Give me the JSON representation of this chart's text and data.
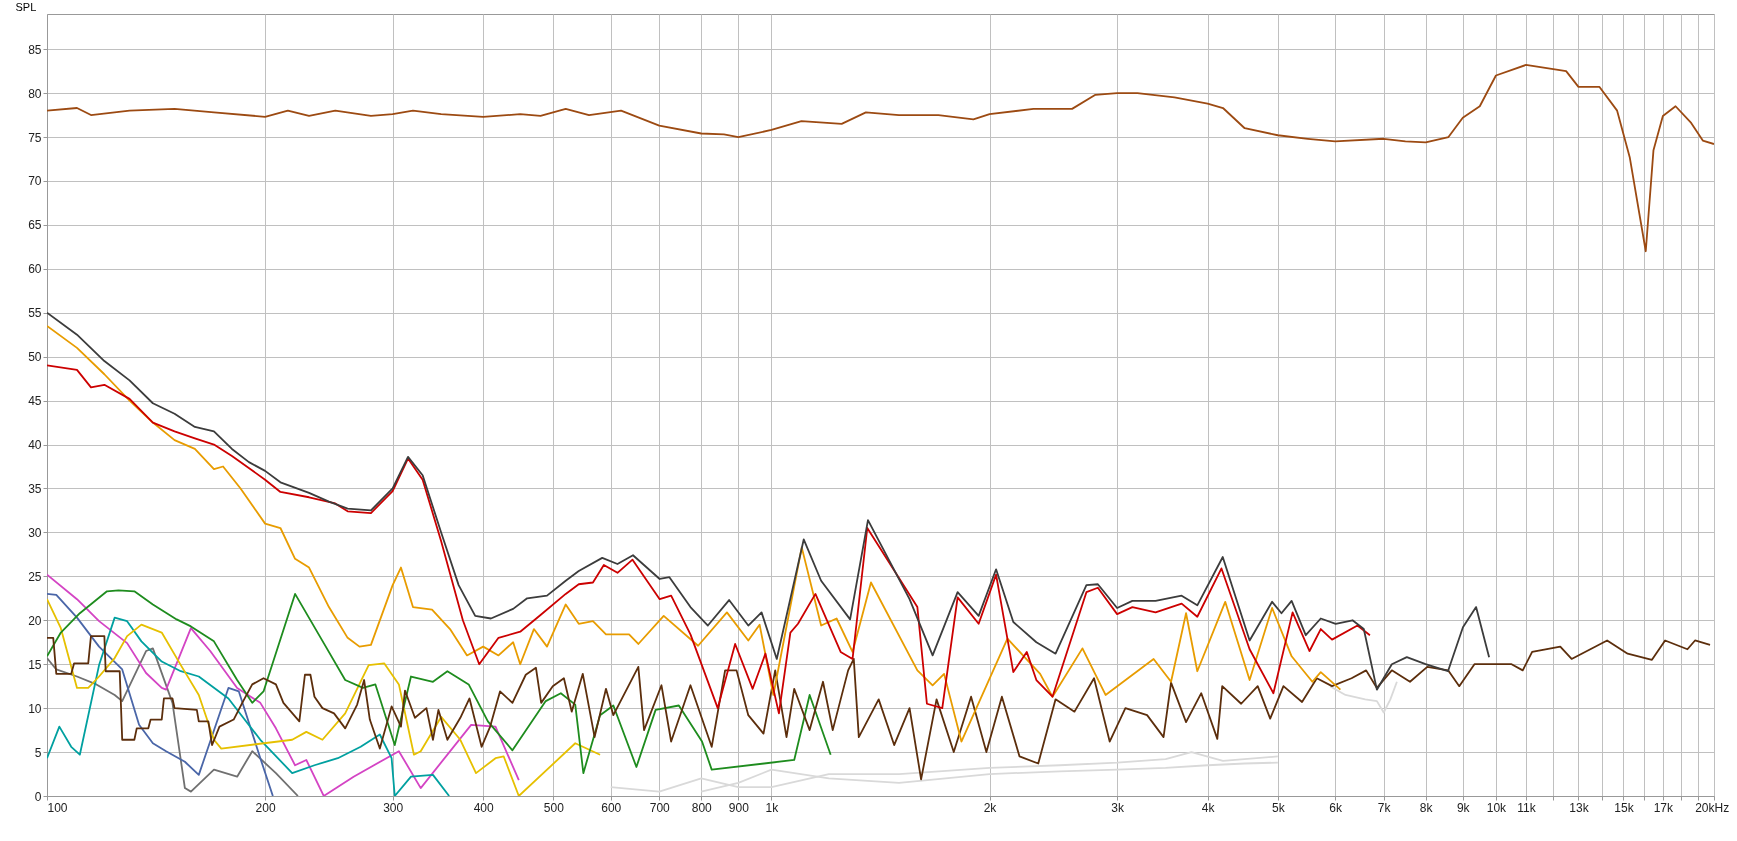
{
  "chart_data": {
    "type": "line",
    "ylabel": "SPL",
    "xlim": [
      100,
      20000
    ],
    "ylim": [
      0,
      89
    ],
    "log": "x",
    "grid": true,
    "xticks": [
      {
        "value": 100,
        "label": "100"
      },
      {
        "value": 200,
        "label": "200"
      },
      {
        "value": 300,
        "label": "300"
      },
      {
        "value": 400,
        "label": "400"
      },
      {
        "value": 500,
        "label": "500"
      },
      {
        "value": 600,
        "label": "600"
      },
      {
        "value": 700,
        "label": "700"
      },
      {
        "value": 800,
        "label": "800"
      },
      {
        "value": 900,
        "label": "900"
      },
      {
        "value": 1000,
        "label": "1k"
      },
      {
        "value": 2000,
        "label": "2k"
      },
      {
        "value": 3000,
        "label": "3k"
      },
      {
        "value": 4000,
        "label": "4k"
      },
      {
        "value": 5000,
        "label": "5k"
      },
      {
        "value": 6000,
        "label": "6k"
      },
      {
        "value": 7000,
        "label": "7k"
      },
      {
        "value": 8000,
        "label": "8k"
      },
      {
        "value": 9000,
        "label": "9k"
      },
      {
        "value": 10000,
        "label": "10k"
      },
      {
        "value": 11000,
        "label": "11k"
      },
      {
        "value": 12000,
        "label": null
      },
      {
        "value": 13000,
        "label": "13k"
      },
      {
        "value": 14000,
        "label": null
      },
      {
        "value": 15000,
        "label": "15k"
      },
      {
        "value": 16000,
        "label": null
      },
      {
        "value": 17000,
        "label": "17k"
      },
      {
        "value": 18000,
        "label": null
      },
      {
        "value": 19000,
        "label": null
      },
      {
        "value": 20000,
        "label": "20k"
      }
    ],
    "xlabel": "Hz",
    "yticks": [
      0,
      5,
      10,
      15,
      20,
      25,
      30,
      35,
      40,
      45,
      50,
      55,
      60,
      65,
      70,
      75,
      80,
      85
    ],
    "series": [
      {
        "color": "#d9d9d9",
        "x": [
          600,
          700,
          800,
          900,
          1000,
          1200,
          1500,
          2000,
          2500,
          3000,
          3500,
          3800,
          4200,
          5000
        ],
        "values": [
          1,
          0.5,
          2,
          1,
          1,
          2.5,
          2.5,
          3.2,
          3.5,
          3.8,
          4.2,
          5,
          4,
          4.5
        ]
      },
      {
        "color": "#d9d9d9",
        "x": [
          800,
          900,
          1000,
          1200,
          1500,
          2000,
          2500,
          3000,
          3500,
          4000,
          4500,
          5000
        ],
        "values": [
          0.5,
          1.5,
          3,
          2,
          1.5,
          2.5,
          2.8,
          3,
          3.2,
          3.5,
          3.7,
          3.8
        ]
      },
      {
        "color": "#d9d9d9",
        "x": [
          5900,
          6200,
          6600,
          6850,
          7000,
          7150,
          7300
        ],
        "values": [
          12.5,
          11.5,
          11,
          10.8,
          9.5,
          11,
          13
        ]
      },
      {
        "color": "#707070",
        "x": [
          100,
          103,
          110,
          117,
          124,
          127,
          137,
          140,
          149,
          155,
          158,
          170,
          183,
          192,
          207,
          222
        ],
        "values": [
          15.7,
          14.4,
          13.6,
          12.7,
          11.5,
          10.8,
          16.5,
          16.8,
          10.6,
          0.9,
          0.5,
          3,
          2.2,
          5.1,
          2.6,
          0
        ]
      },
      {
        "color": "#4a66a8",
        "x": [
          100,
          103,
          110,
          118,
          127,
          134,
          140,
          146,
          155,
          162,
          178,
          184,
          197,
          205
        ],
        "values": [
          23,
          22.9,
          20.3,
          17,
          14.4,
          8.1,
          6,
          5.1,
          3.9,
          2.4,
          12.3,
          11.9,
          4.3,
          0
        ]
      },
      {
        "color": "#d444c4",
        "x": [
          100,
          110,
          118,
          129,
          137,
          144,
          146,
          158,
          168,
          183,
          197,
          207,
          220,
          228,
          241,
          265,
          306,
          328,
          385,
          416,
          448
        ],
        "values": [
          25.2,
          22.4,
          19.9,
          17.4,
          14,
          12.3,
          12.1,
          19.1,
          16.5,
          12.3,
          10.6,
          7.7,
          3.5,
          4.1,
          0,
          2.2,
          5.1,
          0.9,
          8.1,
          7.9,
          1.8
        ]
      },
      {
        "color": "#00a0a0",
        "x": [
          100,
          104,
          108,
          111,
          118,
          124,
          129,
          135,
          144,
          153,
          162,
          178,
          197,
          218,
          234,
          252,
          271,
          288,
          299,
          302,
          318,
          341,
          359
        ],
        "values": [
          4.3,
          7.9,
          5.6,
          4.7,
          14.9,
          20.3,
          19.9,
          17.6,
          15.3,
          14.2,
          13.6,
          11.1,
          6.4,
          2.6,
          3.5,
          4.3,
          5.6,
          7,
          4.3,
          0,
          2.2,
          2.4,
          0
        ]
      },
      {
        "color": "#e6c000",
        "x": [
          100,
          104.5,
          110,
          114,
          118,
          124,
          129,
          135,
          144,
          153,
          162,
          170,
          174,
          218,
          228,
          240,
          258,
          278,
          292,
          306,
          321,
          328,
          350,
          372,
          391,
          416,
          427,
          448,
          536,
          580
        ],
        "values": [
          22.4,
          19.1,
          12.3,
          12.3,
          13.6,
          15.7,
          18.2,
          19.5,
          18.6,
          14.9,
          11.5,
          6.4,
          5.4,
          6.4,
          7.3,
          6.4,
          9.4,
          14.9,
          15.1,
          12.7,
          4.7,
          5.1,
          9,
          6.4,
          2.6,
          4.3,
          4.5,
          0,
          6,
          4.7
        ]
      },
      {
        "color": "#1e8c1e",
        "x": [
          100,
          104.5,
          111,
          121,
          125.5,
          132,
          140,
          151,
          158,
          170,
          183,
          192,
          199,
          220,
          241,
          258,
          273,
          284,
          302,
          318,
          341,
          357,
          382,
          406,
          439,
          488,
          512,
          536,
          550,
          580,
          605,
          651,
          692,
          745,
          802,
          827,
          1075,
          1129,
          1207
        ],
        "values": [
          15.9,
          18.6,
          20.8,
          23.3,
          23.4,
          23.3,
          21.8,
          20.1,
          19.3,
          17.6,
          13.2,
          10.6,
          11.9,
          23,
          17.4,
          13.2,
          12.3,
          12.7,
          5.8,
          13.6,
          13,
          14.2,
          12.7,
          8.5,
          5.2,
          10.8,
          11.7,
          10.4,
          2.6,
          9.2,
          10.3,
          3.3,
          9.8,
          10.3,
          6.2,
          3,
          4.1,
          11.5,
          4.7
        ]
      },
      {
        "color": "#5c2e0c",
        "x": [
          100,
          102,
          103,
          108,
          109,
          114,
          115,
          120,
          120.5,
          126,
          127,
          132,
          133,
          138,
          139,
          144,
          145,
          149,
          150,
          161,
          162,
          167,
          169,
          173,
          181,
          186,
          192,
          199,
          207,
          212,
          223,
          227,
          231,
          234,
          240,
          249,
          258,
          268,
          274,
          279,
          288,
          299,
          308,
          312,
          322,
          334,
          341,
          347,
          357,
          372,
          383,
          398,
          409,
          422,
          439,
          458,
          473,
          481,
          499,
          517,
          530,
          549,
          570,
          591,
          605,
          655,
          667,
          705,
          727,
          773,
          827,
          863,
          895,
          929,
          975,
          1012,
          1049,
          1075,
          1129,
          1178,
          1215,
          1276,
          1299,
          1320,
          1406,
          1477,
          1551,
          1609,
          1690,
          1785,
          1886,
          1980,
          2080,
          2200,
          2335,
          2467,
          2620,
          2788,
          2930,
          3080,
          3300,
          3477,
          3561,
          3735,
          3920,
          4125,
          4190,
          4450,
          4690,
          4880,
          5090,
          5400,
          5660,
          5940,
          6320,
          6620,
          6850,
          7183,
          7610,
          8040,
          8590,
          8900,
          9340,
          9930,
          10510,
          10890,
          11220,
          12270,
          12720,
          14240,
          15200,
          16420,
          17120,
          18380,
          18830,
          19750
        ],
        "values": [
          18,
          18,
          13.9,
          13.9,
          15.1,
          15.1,
          18.2,
          18.2,
          14.2,
          14.2,
          6.4,
          6.4,
          7.7,
          7.7,
          8.7,
          8.7,
          11.1,
          11.1,
          10,
          9.8,
          8.5,
          8.5,
          5.8,
          7.9,
          8.7,
          10.6,
          12.7,
          13.4,
          12.7,
          10.6,
          8.5,
          13.8,
          13.8,
          11.3,
          10,
          9.4,
          7.7,
          10.4,
          13.2,
          8.7,
          5.4,
          10.2,
          7.9,
          12,
          8.9,
          10,
          6.4,
          9.8,
          6.4,
          8.9,
          11.1,
          5.6,
          7.9,
          11.9,
          10.6,
          13.8,
          14.6,
          10.6,
          12.5,
          13.4,
          9.6,
          13.9,
          6.7,
          12.2,
          9.2,
          14.7,
          7.5,
          12.6,
          6.2,
          12.6,
          5.6,
          14.3,
          14.3,
          9.2,
          7.1,
          14.3,
          6.7,
          12.2,
          7.5,
          13,
          7.5,
          14.3,
          15.6,
          6.7,
          11,
          5.8,
          10,
          1.9,
          11,
          5,
          11.3,
          5,
          11.3,
          4.5,
          3.7,
          11,
          9.6,
          13.4,
          6.2,
          10,
          9.2,
          6.7,
          12.9,
          8.4,
          11.7,
          6.5,
          12.5,
          10.5,
          12.5,
          8.8,
          12.5,
          10.7,
          13.4,
          12.5,
          13.4,
          14.3,
          12.3,
          14.3,
          13,
          14.7,
          14.3,
          12.5,
          15,
          15,
          15,
          14.3,
          16.4,
          17,
          15.6,
          17.7,
          16.2,
          15.5,
          17.7,
          16.7,
          17.7,
          17.2
        ]
      },
      {
        "color": "#e89c00",
        "x": [
          100,
          110,
          120,
          130,
          140,
          150,
          160,
          170,
          175,
          185,
          200,
          210,
          220,
          230,
          245,
          260,
          270,
          280,
          300,
          308,
          320,
          340,
          360,
          380,
          400,
          420,
          440,
          450,
          470,
          490,
          520,
          542,
          567,
          591,
          636,
          655,
          710,
          792,
          868,
          929,
          963,
          1006,
          1101,
          1171,
          1230,
          1294,
          1372,
          1590,
          1669,
          1731,
          1829,
          2117,
          2349,
          2443,
          2687,
          2892,
          3369,
          3561,
          3735,
          3871,
          4230,
          4571,
          4910,
          5224,
          5580,
          5731,
          6100
        ],
        "values": [
          53.5,
          51,
          48,
          45,
          42.5,
          40.5,
          39.5,
          37.2,
          37.5,
          35,
          31,
          30.5,
          27,
          26,
          21.5,
          18,
          17,
          17.2,
          24,
          26,
          21.5,
          21.2,
          19,
          16,
          17,
          16,
          17.5,
          15,
          19,
          17,
          21.8,
          19.6,
          19.9,
          18.4,
          18.4,
          17.3,
          20.5,
          17.1,
          20.9,
          17.7,
          19.5,
          11.5,
          28.3,
          19.4,
          20.2,
          16.4,
          24.3,
          14.3,
          12.6,
          13.9,
          6.2,
          17.9,
          13.9,
          11.3,
          16.8,
          11.5,
          15.6,
          13,
          20.8,
          14.2,
          22.1,
          13.2,
          21.4,
          15.9,
          13,
          14.1,
          12.1
        ]
      },
      {
        "color": "#cc0000",
        "x": [
          100,
          110,
          115,
          120,
          130,
          140,
          150,
          160,
          170,
          180,
          200,
          210,
          230,
          250,
          260,
          280,
          300,
          315,
          330,
          350,
          375,
          395,
          420,
          450,
          480,
          520,
          542,
          567,
          587,
          613,
          643,
          701,
          727,
          773,
          843,
          891,
          942,
          981,
          1024,
          1062,
          1088,
          1150,
          1246,
          1294,
          1356,
          1590,
          1639,
          1721,
          1807,
          1932,
          2042,
          2157,
          2251,
          2321,
          2443,
          2721,
          2822,
          3000,
          3149,
          3390,
          3683,
          3871,
          4180,
          4571,
          4930,
          5240,
          5530,
          5731,
          5940,
          6440,
          6700
        ],
        "values": [
          49,
          48.5,
          46.5,
          46.8,
          45.2,
          42.5,
          41.5,
          40.7,
          40,
          38.7,
          36,
          34.6,
          34,
          33.3,
          32.4,
          32.2,
          34.7,
          38.4,
          36,
          29,
          20,
          15,
          18,
          18.7,
          20.6,
          23,
          24.1,
          24.3,
          26.3,
          25.4,
          26.9,
          22.4,
          22.8,
          18.4,
          10,
          17.3,
          12.2,
          16.2,
          9.4,
          18.6,
          19.6,
          23,
          16.4,
          15.6,
          30.5,
          21.5,
          10.5,
          10,
          22.6,
          19.6,
          25.2,
          14.1,
          16.4,
          13.2,
          11.3,
          23.2,
          23.7,
          20.7,
          21.5,
          20.9,
          21.9,
          20.4,
          25.9,
          16.7,
          11.7,
          20.9,
          16.5,
          19,
          17.8,
          19.4,
          18.3
        ]
      },
      {
        "color": "#3c3c3c",
        "x": [
          100,
          110,
          120,
          130,
          140,
          150,
          160,
          170,
          180,
          190,
          200,
          210,
          230,
          245,
          260,
          280,
          300,
          315,
          330,
          350,
          370,
          390,
          410,
          440,
          460,
          490,
          520,
          542,
          584,
          613,
          644,
          701,
          723,
          773,
          817,
          874,
          929,
          969,
          1017,
          1108,
          1171,
          1284,
          1359,
          1551,
          1669,
          1807,
          1932,
          2042,
          2157,
          2321,
          2467,
          2721,
          2822,
          3000,
          3149,
          3390,
          3683,
          3871,
          4197,
          4571,
          4910,
          5058,
          5224,
          5464,
          5731,
          6009,
          6340,
          6571,
          6850,
          7183,
          7534,
          7996,
          8587,
          9005,
          9389,
          9786
        ],
        "values": [
          55,
          52.5,
          49.5,
          47.3,
          44.7,
          43.5,
          42,
          41.5,
          39.5,
          38,
          37,
          35.7,
          34.5,
          33.5,
          32.7,
          32.5,
          35,
          38.6,
          36.5,
          30,
          24,
          20.5,
          20.2,
          21.3,
          22.5,
          22.8,
          24.5,
          25.6,
          27.1,
          26.4,
          27.4,
          24.7,
          24.9,
          21.5,
          19.4,
          22.3,
          19.4,
          20.9,
          15.6,
          29.2,
          24.5,
          20.1,
          31.4,
          22.4,
          16,
          23.2,
          20.5,
          25.8,
          19.8,
          17.5,
          16.2,
          24,
          24.1,
          21.4,
          22.2,
          22.2,
          22.8,
          21.7,
          27.2,
          17.7,
          22.1,
          20.8,
          22.2,
          18.3,
          20.2,
          19.6,
          20,
          19,
          12.1,
          15,
          15.8,
          15,
          14.2,
          19.2,
          21.5,
          15.8
        ]
      },
      {
        "color": "#9c4a12",
        "x": [
          100,
          110,
          115,
          130,
          150,
          170,
          200,
          215,
          230,
          250,
          280,
          300,
          320,
          350,
          400,
          450,
          480,
          520,
          560,
          620,
          700,
          800,
          860,
          900,
          1000,
          1100,
          1250,
          1350,
          1500,
          1700,
          1900,
          2000,
          2300,
          2600,
          2800,
          3000,
          3200,
          3600,
          4000,
          4200,
          4500,
          5000,
          5500,
          6000,
          7000,
          7500,
          8000,
          8600,
          9000,
          9500,
          10000,
          11000,
          12500,
          13000,
          13900,
          14700,
          15300,
          16100,
          16500,
          17000,
          17700,
          18600,
          19300,
          20000
        ],
        "values": [
          78,
          78.3,
          77.5,
          78,
          78.2,
          77.8,
          77.3,
          78,
          77.4,
          78,
          77.4,
          77.6,
          78,
          77.6,
          77.3,
          77.6,
          77.4,
          78.2,
          77.5,
          78,
          76.3,
          75.4,
          75.3,
          75,
          75.8,
          76.8,
          76.5,
          77.8,
          77.5,
          77.5,
          77,
          77.6,
          78.2,
          78.2,
          79.8,
          80,
          80,
          79.5,
          78.8,
          78.3,
          76,
          75.2,
          74.8,
          74.5,
          74.8,
          74.5,
          74.4,
          75,
          77.2,
          78.5,
          82,
          83.2,
          82.5,
          80.7,
          80.7,
          78,
          72.7,
          62,
          73.5,
          77.4,
          78.5,
          76.6,
          74.6,
          74.2
        ]
      }
    ]
  }
}
